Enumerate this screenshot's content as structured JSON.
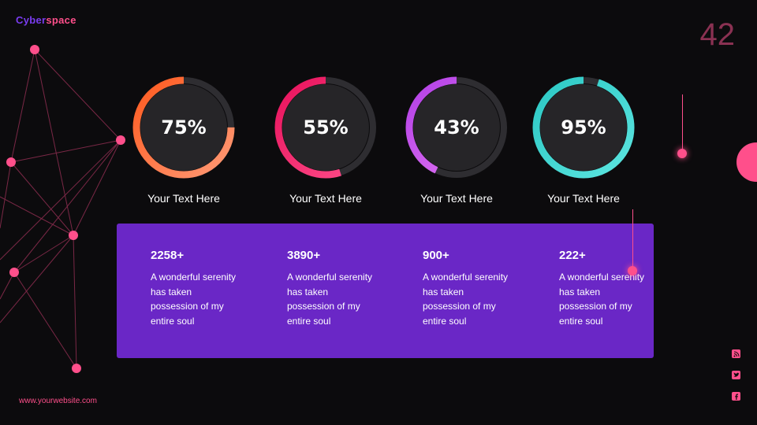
{
  "header": {
    "brand_part1": "Cyber",
    "brand_part2": "space",
    "page_number": "42"
  },
  "gauges": [
    {
      "value": 75,
      "label": "75%",
      "caption": "Your Text Here",
      "color_start": "#ff9a76",
      "color_end": "#ff5a1f"
    },
    {
      "value": 55,
      "label": "55%",
      "caption": "Your Text Here",
      "color_start": "#ff4f8b",
      "color_end": "#e8125c"
    },
    {
      "value": 43,
      "label": "43%",
      "caption": "Your Text Here",
      "color_start": "#e77cf5",
      "color_end": "#b23fe6"
    },
    {
      "value": 95,
      "label": "95%",
      "caption": "Your Text Here",
      "color_start": "#5ce5e0",
      "color_end": "#2cc8c4"
    }
  ],
  "stats": [
    {
      "number": "2258+",
      "desc": "A wonderful serenity has taken possession of my entire soul"
    },
    {
      "number": "3890+",
      "desc": "A wonderful serenity has taken possession of my entire soul"
    },
    {
      "number": "900+",
      "desc": "A wonderful serenity has taken possession of my entire soul"
    },
    {
      "number": "222+",
      "desc": "A wonderful serenity has taken possession of my entire soul"
    }
  ],
  "footer": {
    "website": "www.yourwebsite.com"
  },
  "social_icons": [
    "rss-icon",
    "twitter-icon",
    "facebook-icon"
  ],
  "colors": {
    "accent": "#ff4f8b",
    "panel": "#6a27c6",
    "background": "#0c0b0d"
  }
}
